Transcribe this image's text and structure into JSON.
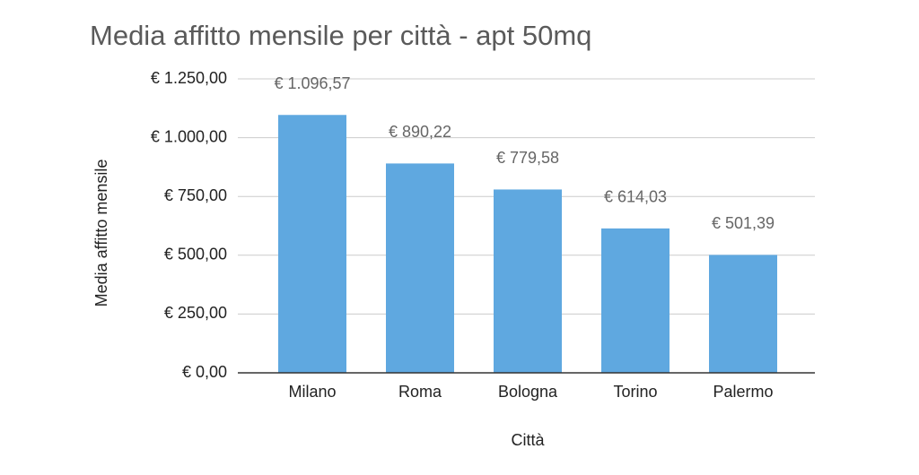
{
  "chart_data": {
    "type": "bar",
    "title": "Media affitto mensile per città - apt 50mq",
    "x_label": "Città",
    "y_label": "Media affitto mensile",
    "categories": [
      "Milano",
      "Roma",
      "Bologna",
      "Torino",
      "Palermo"
    ],
    "values": [
      1096.57,
      890.22,
      779.58,
      614.03,
      501.39
    ],
    "value_labels": [
      "€ 1.096,57",
      "€ 890,22",
      "€ 779,58",
      "€ 614,03",
      "€ 501,39"
    ],
    "color": "#5fa8e0",
    "ylim": [
      0,
      1250
    ],
    "yticks": [
      {
        "value": 0,
        "label": "€ 0,00"
      },
      {
        "value": 250,
        "label": "€ 250,00"
      },
      {
        "value": 500,
        "label": "€ 500,00"
      },
      {
        "value": 750,
        "label": "€ 750,00"
      },
      {
        "value": 1000,
        "label": "€ 1.000,00"
      },
      {
        "value": 1250,
        "label": "€ 1.250,00"
      }
    ],
    "grid": true
  }
}
